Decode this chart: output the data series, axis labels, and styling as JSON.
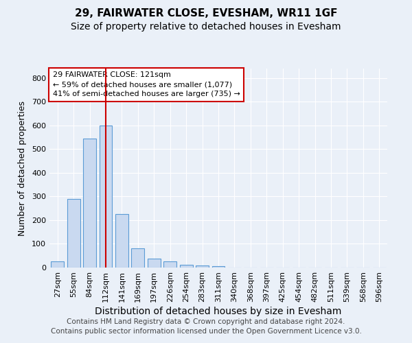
{
  "title1": "29, FAIRWATER CLOSE, EVESHAM, WR11 1GF",
  "title2": "Size of property relative to detached houses in Evesham",
  "xlabel": "Distribution of detached houses by size in Evesham",
  "ylabel": "Number of detached properties",
  "categories": [
    "27sqm",
    "55sqm",
    "84sqm",
    "112sqm",
    "141sqm",
    "169sqm",
    "197sqm",
    "226sqm",
    "254sqm",
    "283sqm",
    "311sqm",
    "340sqm",
    "368sqm",
    "397sqm",
    "425sqm",
    "454sqm",
    "482sqm",
    "511sqm",
    "539sqm",
    "568sqm",
    "596sqm"
  ],
  "values": [
    25,
    290,
    545,
    600,
    225,
    80,
    37,
    25,
    12,
    8,
    7,
    0,
    0,
    0,
    0,
    0,
    0,
    0,
    0,
    0,
    0
  ],
  "bar_color": "#c9d9f0",
  "bar_edge_color": "#5b9bd5",
  "vline_color": "#cc0000",
  "vline_x_index": 3,
  "annotation_line1": "29 FAIRWATER CLOSE: 121sqm",
  "annotation_line2": "← 59% of detached houses are smaller (1,077)",
  "annotation_line3": "41% of semi-detached houses are larger (735) →",
  "annotation_box_color": "white",
  "annotation_box_edge": "#cc0000",
  "ylim": [
    0,
    840
  ],
  "yticks": [
    0,
    100,
    200,
    300,
    400,
    500,
    600,
    700,
    800
  ],
  "background_color": "#eaf0f8",
  "grid_color": "#ffffff",
  "footer_line1": "Contains HM Land Registry data © Crown copyright and database right 2024.",
  "footer_line2": "Contains public sector information licensed under the Open Government Licence v3.0.",
  "title1_fontsize": 11,
  "title2_fontsize": 10,
  "xlabel_fontsize": 10,
  "ylabel_fontsize": 9,
  "tick_fontsize": 8,
  "annot_fontsize": 8,
  "footer_fontsize": 7.5
}
